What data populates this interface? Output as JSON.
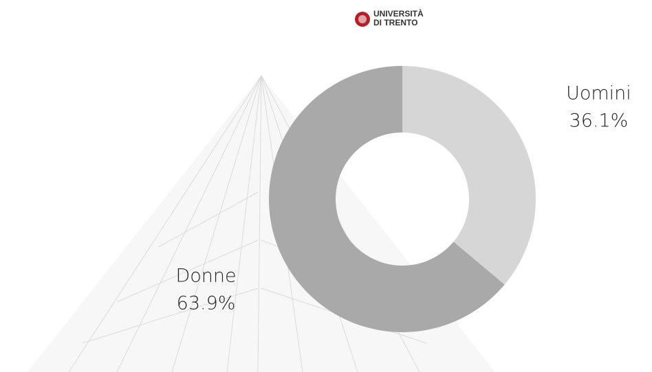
{
  "logo_text": [
    "UNIVERSITÀ",
    "DI TRENTO"
  ],
  "chart_data": {
    "type": "donut",
    "categories": [
      "Uomini",
      "Donne"
    ],
    "values": [
      36.1,
      63.9
    ],
    "value_labels": [
      "36.1%",
      "63.9%"
    ],
    "colors": [
      "#d6d6d6",
      "#a9a9a9"
    ]
  }
}
